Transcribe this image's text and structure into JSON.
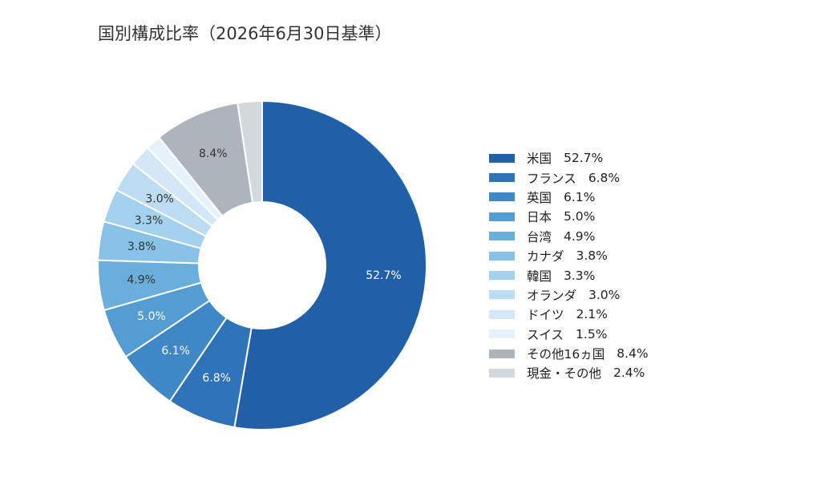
{
  "chart_data": {
    "type": "pie",
    "title": "国別構成比率（2026年6月30日基準）",
    "legend_position": "right",
    "slices": [
      {
        "name": "米国",
        "value": 52.7,
        "label": "52.7%",
        "color": "#2160a8",
        "label_color": "#ffffff"
      },
      {
        "name": "フランス",
        "value": 6.8,
        "label": "6.8%",
        "color": "#2e72b8",
        "label_color": "#ffffff"
      },
      {
        "name": "英国",
        "value": 6.1,
        "label": "6.1%",
        "color": "#3e88c5",
        "label_color": "#ffffff"
      },
      {
        "name": "日本",
        "value": 5.0,
        "label": "5.0%",
        "color": "#539dd2",
        "label_color": "#ffffff"
      },
      {
        "name": "台湾",
        "value": 4.9,
        "label": "4.9%",
        "color": "#6aafdc",
        "label_color": "#333333"
      },
      {
        "name": "カナダ",
        "value": 3.8,
        "label": "3.8%",
        "color": "#88c2e7",
        "label_color": "#333333"
      },
      {
        "name": "韓国",
        "value": 3.3,
        "label": "3.3%",
        "color": "#a4d1ee",
        "label_color": "#333333"
      },
      {
        "name": "オランダ",
        "value": 3.0,
        "label": "3.0%",
        "color": "#bcdcf2",
        "label_color": "#333333"
      },
      {
        "name": "ドイツ",
        "value": 2.1,
        "label": "",
        "color": "#d3e7f7",
        "label_color": "#333333"
      },
      {
        "name": "スイス",
        "value": 1.5,
        "label": "",
        "color": "#e6f2fb",
        "label_color": "#333333"
      },
      {
        "name": "その他16ヵ国",
        "value": 8.4,
        "label": "8.4%",
        "color": "#adb4bb",
        "label_color": "#333333"
      },
      {
        "name": "現金・その他",
        "value": 2.4,
        "label": "",
        "color": "#d3d8dc",
        "label_color": "#333333"
      }
    ],
    "legend": [
      {
        "name": "米国",
        "pct": "52.7%"
      },
      {
        "name": "フランス",
        "pct": "6.8%"
      },
      {
        "name": "英国",
        "pct": "6.1%"
      },
      {
        "name": "日本",
        "pct": "5.0%"
      },
      {
        "name": "台湾",
        "pct": "4.9%"
      },
      {
        "name": "カナダ",
        "pct": "3.8%"
      },
      {
        "name": "韓国",
        "pct": "3.3%"
      },
      {
        "name": "オランダ",
        "pct": "3.0%"
      },
      {
        "name": "ドイツ",
        "pct": "2.1%"
      },
      {
        "name": "スイス",
        "pct": "1.5%"
      },
      {
        "name": "その他16ヵ国",
        "pct": "8.4%"
      },
      {
        "name": "現金・その他",
        "pct": "2.4%"
      }
    ]
  }
}
